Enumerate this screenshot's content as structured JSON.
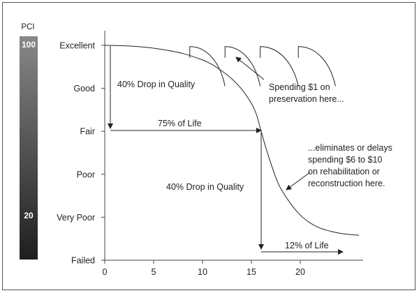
{
  "chart_data": {
    "type": "line",
    "title": "",
    "xlabel": "",
    "ylabel": "",
    "xlim": [
      0,
      26
    ],
    "ylim": [
      0,
      5
    ],
    "x_ticks": [
      0,
      5,
      10,
      15,
      20
    ],
    "y_categories": [
      "Failed",
      "Very Poor",
      "Poor",
      "Fair",
      "Good",
      "Excellent"
    ],
    "pci_scale": {
      "label": "PCI",
      "top_value": "100",
      "low_value": "20",
      "gradient_top": "#888888",
      "gradient_bottom": "#1e1e1e"
    },
    "series": [
      {
        "name": "",
        "x": [
          0,
          2,
          4,
          6,
          8,
          10,
          11,
          12,
          13,
          14,
          15,
          15.5,
          16,
          16.5,
          17,
          17.5,
          18,
          19,
          20,
          21,
          22,
          23,
          24,
          25,
          26
        ],
        "y": [
          5.0,
          4.99,
          4.96,
          4.9,
          4.81,
          4.66,
          4.55,
          4.4,
          4.22,
          3.98,
          3.65,
          3.4,
          3.0,
          2.6,
          2.25,
          1.92,
          1.67,
          1.32,
          1.05,
          0.87,
          0.75,
          0.68,
          0.63,
          0.6,
          0.58
        ]
      }
    ],
    "preservation_scallops": [
      {
        "x_start": 8.7,
        "x_end": 12.3
      },
      {
        "x_start": 12.3,
        "x_end": 15.9
      },
      {
        "x_start": 15.9,
        "x_end": 19.8
      },
      {
        "x_start": 19.8,
        "x_end": 23.6
      }
    ],
    "scallop_top_y": 4.97,
    "scallop_bottom_y": 4.05,
    "annotations": {
      "drop1": "40% Drop in Quality",
      "life75": "75% of Life",
      "drop2": "40% Drop in Quality",
      "life12": "12% of Life",
      "spend1_line1": "Spending $1 on",
      "spend1_line2": "preservation here...",
      "elim_line1": "...eliminates or delays",
      "elim_line2": "spending $6 to $10",
      "elim_line3": "on rehabilitation or",
      "elim_line4": "reconstruction here."
    },
    "grid": false,
    "legend": "none"
  }
}
